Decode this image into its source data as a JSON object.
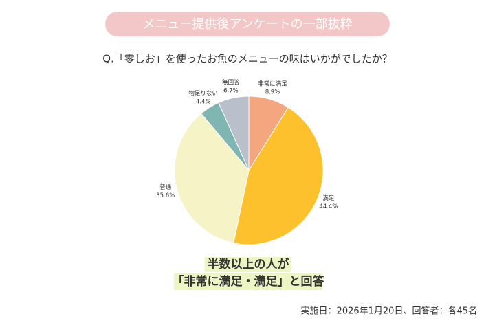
{
  "chart_data": {
    "type": "pie",
    "title": "メニュー提供後アンケートの一部抜粋",
    "subtitle": "Q.「零しお」を使ったお魚のメニューの味はいかがでしたか？",
    "categories": [
      "非常に満足",
      "満足",
      "普通",
      "物足りない",
      "無回答"
    ],
    "values": [
      8.9,
      44.4,
      35.6,
      4.4,
      6.7
    ],
    "value_labels": [
      "8.9%",
      "44.4%",
      "35.6%",
      "4.4%",
      "6.7%"
    ],
    "colors": [
      "#f4a77f",
      "#fcc12c",
      "#f6f3c6",
      "#80b6b1",
      "#b9c0cc"
    ],
    "annotation": [
      "半数以上の人が",
      "「非常に満足・満足」と回答"
    ],
    "note": "実施日：2026年1月20日、回答者：各45名"
  }
}
